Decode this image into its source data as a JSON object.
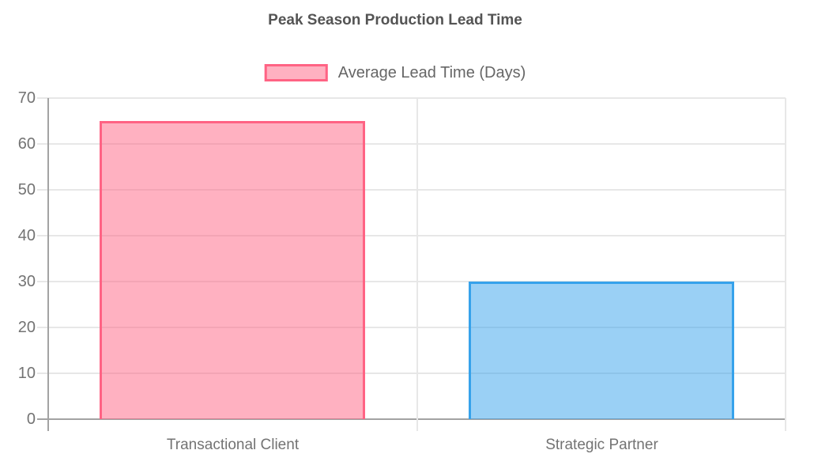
{
  "chart_data": {
    "type": "bar",
    "title": "Peak Season Production Lead Time",
    "categories": [
      "Transactional Client",
      "Strategic Partner"
    ],
    "series": [
      {
        "name": "Average Lead Time (Days)",
        "values": [
          65,
          30
        ],
        "fill_colors": [
          "rgba(255,99,132,0.5)",
          "rgba(54,162,235,0.5)"
        ],
        "border_colors": [
          "#FF6384",
          "#36A2EB"
        ]
      }
    ],
    "xlabel": "",
    "ylabel": "",
    "ylim": [
      0,
      70
    ],
    "yticks": [
      0,
      10,
      20,
      30,
      40,
      50,
      60,
      70
    ],
    "grid": true,
    "legend_position": "top"
  },
  "style": {
    "background": "#ffffff",
    "title_color": "#545454",
    "label_color": "#737373",
    "legend_text_color": "#666666",
    "grid_color": "#e7e7e7",
    "axis_color": "#a3a3a3",
    "legend_fill": "rgba(255,99,132,0.5)",
    "legend_border": "#FF6384"
  }
}
